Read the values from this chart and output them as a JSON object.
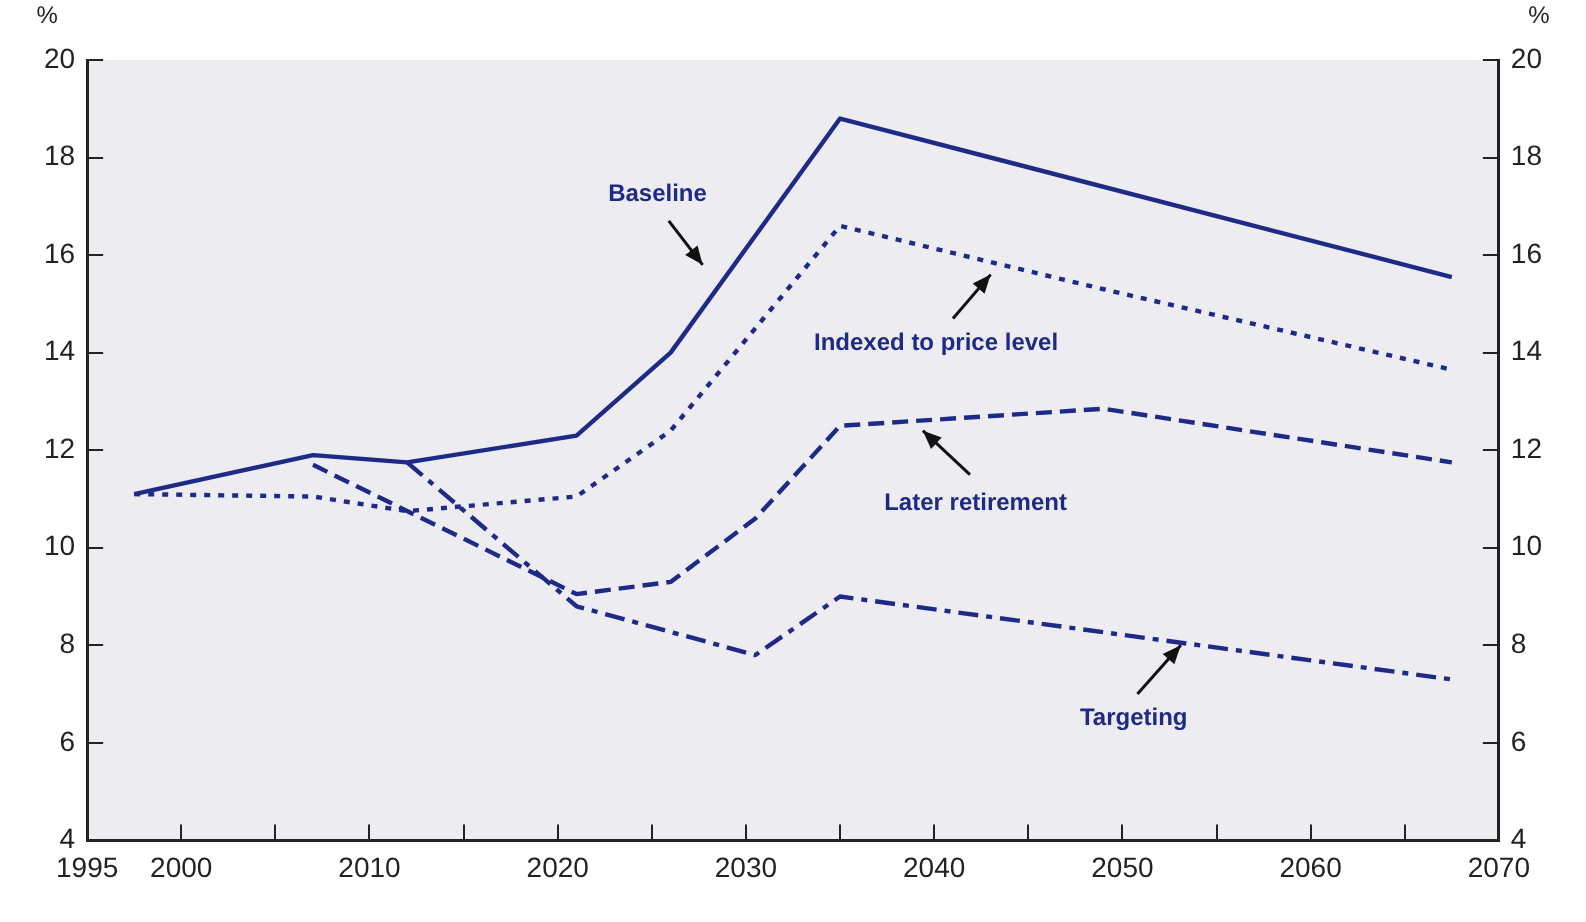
{
  "chart_data": {
    "type": "line",
    "ylabel": "%",
    "y2label": "%",
    "xlim": [
      1995,
      2070
    ],
    "xticks": [
      1995,
      2000,
      {
        "value": 2005,
        "label": null
      },
      2010,
      {
        "value": 2015,
        "label": null
      },
      2020,
      {
        "value": 2025,
        "label": null
      },
      2030,
      {
        "value": 2035,
        "label": null
      },
      2040,
      {
        "value": 2045,
        "label": null
      },
      2050,
      {
        "value": 2055,
        "label": null
      },
      2060,
      {
        "value": 2065,
        "label": null
      },
      2070
    ],
    "ylim": [
      4,
      20
    ],
    "yticks": [
      4,
      6,
      8,
      10,
      12,
      14,
      16,
      18,
      20
    ],
    "y2lim": [
      4,
      20
    ],
    "y2ticks": [
      4,
      6,
      8,
      10,
      12,
      14,
      16,
      18,
      20
    ],
    "grid": false,
    "legend": false,
    "marker": "none",
    "series": [
      {
        "name": "Baseline",
        "color": "#1f2a86",
        "line_style": "solid",
        "x": [
          1997.5,
          2007,
          2012,
          2021,
          2026,
          2035,
          2067.5
        ],
        "values": [
          11.1,
          11.9,
          11.75,
          12.3,
          14.0,
          18.8,
          15.55
        ]
      },
      {
        "name": "Indexed to price level",
        "color": "#1f2a86",
        "line_style": "dotted",
        "x": [
          1997.5,
          2007,
          2012,
          2021,
          2026,
          2035,
          2049,
          2067.5
        ],
        "values": [
          11.1,
          11.05,
          10.75,
          11.05,
          12.4,
          16.6,
          15.3,
          13.65
        ]
      },
      {
        "name": "Later retirement",
        "color": "#1f2a86",
        "line_style": "dashed",
        "x": [
          2007,
          2021,
          2026,
          2030.5,
          2035,
          2049,
          2067.5
        ],
        "values": [
          11.7,
          9.05,
          9.3,
          10.6,
          12.5,
          12.85,
          11.75
        ]
      },
      {
        "name": "Targeting",
        "color": "#1f2a86",
        "line_style": "dashdot",
        "x": [
          2012,
          2021,
          2030.5,
          2035,
          2067.5
        ],
        "values": [
          11.75,
          8.8,
          7.8,
          9.0,
          7.3
        ]
      }
    ]
  }
}
